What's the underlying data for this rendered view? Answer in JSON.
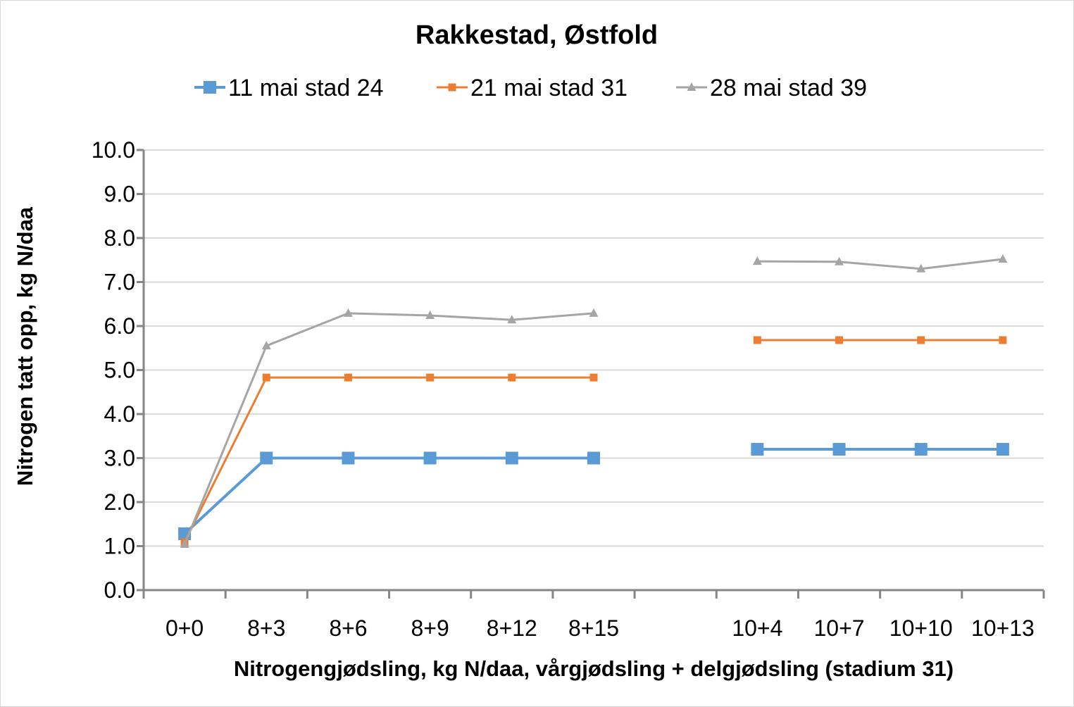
{
  "chart_data": {
    "type": "line",
    "title": "Rakkestad, Østfold",
    "xlabel": "Nitrogengjødsling, kg N/daa, vårgjødsling + delgjødsling (stadium 31)",
    "ylabel": "Nitrogen tatt opp, kg N/daa",
    "categories": [
      "0+0",
      "8+3",
      "8+6",
      "8+9",
      "8+12",
      "8+15",
      "",
      "10+4",
      "10+7",
      "10+10",
      "10+13"
    ],
    "ylim": [
      0,
      10
    ],
    "yticks": [
      "0.0",
      "1.0",
      "2.0",
      "3.0",
      "4.0",
      "5.0",
      "6.0",
      "7.0",
      "8.0",
      "9.0",
      "10.0"
    ],
    "grid": true,
    "legend_position": "top",
    "series": [
      {
        "name": "11 mai stad 24",
        "color": "#5b9bd5",
        "marker": "square-large",
        "values": [
          1.28,
          3.0,
          3.0,
          3.0,
          3.0,
          3.0,
          null,
          3.2,
          3.2,
          3.2,
          3.2
        ]
      },
      {
        "name": "21 mai stad 31",
        "color": "#ed7d31",
        "marker": "square-small",
        "values": [
          1.09,
          4.83,
          4.83,
          4.83,
          4.83,
          4.83,
          null,
          5.68,
          5.68,
          5.68,
          5.68
        ]
      },
      {
        "name": "28 mai stad 39",
        "color": "#a5a5a5",
        "marker": "triangle",
        "values": [
          1.04,
          5.55,
          6.29,
          6.24,
          6.14,
          6.29,
          null,
          7.47,
          7.46,
          7.3,
          7.52
        ]
      }
    ]
  }
}
